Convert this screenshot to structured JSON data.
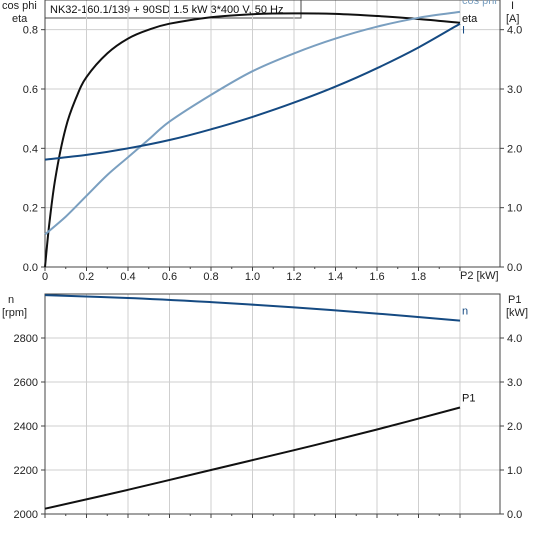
{
  "title": "NK32-160.1/139 + 90SD   1.5 kW   3*400 V, 50 Hz",
  "colors": {
    "eta": "#111111",
    "cosphi": "#7a9fc0",
    "I": "#154a82",
    "n": "#154a82",
    "P1": "#111111"
  },
  "chart_data": [
    {
      "type": "line",
      "left_axis_label": [
        "cos phi",
        "eta"
      ],
      "right_axis_label": [
        "I",
        "[A]"
      ],
      "xlabel": "P2 [kW]",
      "xlim": [
        0,
        2.0
      ],
      "ylim_left": [
        0,
        0.9
      ],
      "ylim_right": [
        0,
        4.5
      ],
      "x_ticks": [
        "0",
        "0.2",
        "0.4",
        "0.6",
        "0.8",
        "1.0",
        "1.2",
        "1.4",
        "1.6",
        "1.8"
      ],
      "y_left_ticks": [
        "0.0",
        "0.2",
        "0.4",
        "0.6",
        "0.8"
      ],
      "y_right_ticks": [
        "0.0",
        "1.0",
        "2.0",
        "3.0",
        "4.0"
      ],
      "series": [
        {
          "name": "eta",
          "axis": "left",
          "color": "#111111",
          "x": [
            0,
            0.02,
            0.05,
            0.1,
            0.15,
            0.2,
            0.3,
            0.4,
            0.5,
            0.6,
            0.8,
            1.0,
            1.2,
            1.4,
            1.6,
            1.8,
            2.0
          ],
          "y": [
            0,
            0.14,
            0.3,
            0.47,
            0.57,
            0.64,
            0.72,
            0.77,
            0.8,
            0.82,
            0.842,
            0.852,
            0.855,
            0.853,
            0.846,
            0.836,
            0.823
          ]
        },
        {
          "name": "cos phi",
          "axis": "left",
          "color": "#7a9fc0",
          "x": [
            0,
            0.1,
            0.2,
            0.3,
            0.4,
            0.5,
            0.6,
            0.8,
            1.0,
            1.2,
            1.4,
            1.6,
            1.8,
            2.0
          ],
          "y": [
            0.11,
            0.17,
            0.24,
            0.31,
            0.37,
            0.43,
            0.49,
            0.58,
            0.66,
            0.72,
            0.77,
            0.81,
            0.84,
            0.86
          ]
        },
        {
          "name": "I",
          "axis": "right",
          "color": "#154a82",
          "x": [
            0,
            0.2,
            0.4,
            0.6,
            0.8,
            1.0,
            1.2,
            1.4,
            1.6,
            1.8,
            2.0
          ],
          "y": [
            1.81,
            1.89,
            2.0,
            2.14,
            2.32,
            2.53,
            2.77,
            3.04,
            3.35,
            3.7,
            4.1
          ]
        }
      ]
    },
    {
      "type": "line",
      "left_axis_label": [
        "n",
        "[rpm]"
      ],
      "right_axis_label": [
        "P1",
        "[kW]"
      ],
      "xlim": [
        0,
        2.0
      ],
      "ylim_left": [
        2000,
        3000
      ],
      "ylim_right": [
        0,
        5.0
      ],
      "y_left_ticks": [
        "2000",
        "2200",
        "2400",
        "2600",
        "2800"
      ],
      "y_right_ticks": [
        "0.0",
        "1.0",
        "2.0",
        "3.0",
        "4.0"
      ],
      "series": [
        {
          "name": "n",
          "axis": "left",
          "color": "#154a82",
          "x": [
            0,
            0.4,
            0.8,
            1.2,
            1.6,
            2.0
          ],
          "y": [
            2995,
            2982,
            2963,
            2939,
            2911,
            2879
          ]
        },
        {
          "name": "P1",
          "axis": "right",
          "color": "#111111",
          "x": [
            0,
            0.4,
            0.8,
            1.2,
            1.6,
            2.0
          ],
          "y": [
            0.12,
            0.55,
            1.0,
            1.45,
            1.92,
            2.42
          ]
        }
      ]
    }
  ]
}
